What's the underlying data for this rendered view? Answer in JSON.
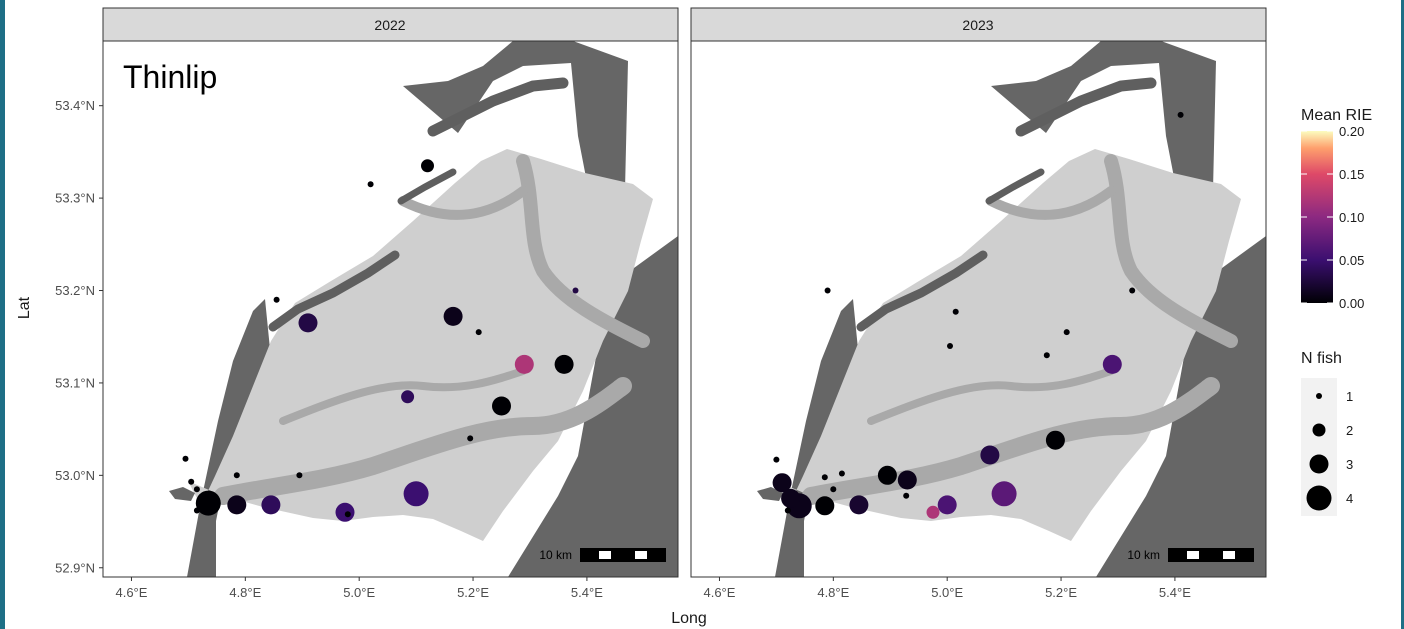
{
  "species_label": "Thinlip",
  "panels": [
    {
      "title": "2022"
    },
    {
      "title": "2023"
    }
  ],
  "axes": {
    "xlabel": "Long",
    "ylabel": "Lat",
    "x_ticks": [
      "4.6°E",
      "4.8°E",
      "5.0°E",
      "5.2°E",
      "5.4°E"
    ],
    "y_ticks": [
      "53.4°N",
      "53.3°N",
      "53.2°N",
      "53.1°N",
      "53.0°N",
      "52.9°N"
    ]
  },
  "scale_bar": {
    "label": "10 km"
  },
  "legend": {
    "color_title": "Mean RIE",
    "color_ticks": [
      "0.20",
      "0.15",
      "0.10",
      "0.05",
      "0.00"
    ],
    "size_title": "N fish",
    "size_items": [
      "1",
      "2",
      "3",
      "4"
    ]
  },
  "colors": {
    "sea": "#cfcfcf",
    "channel": "#a9a9a9",
    "land": "#666666",
    "island": "#5f5f5f",
    "strip": "#d9d9d9",
    "panel_border": "#333333"
  },
  "chart_data": {
    "type": "scatter",
    "xlabel": "Long",
    "ylabel": "Lat",
    "xlim": [
      4.55,
      5.56
    ],
    "ylim": [
      52.89,
      53.47
    ],
    "color_variable": "Mean RIE",
    "color_range": [
      0.0,
      0.2
    ],
    "size_variable": "N fish",
    "panels": [
      {
        "name": "2022",
        "points": [
          {
            "lon": 5.12,
            "lat": 53.335,
            "n": 2,
            "rie": 0.0
          },
          {
            "lon": 5.02,
            "lat": 53.315,
            "n": 1,
            "rie": 0.0
          },
          {
            "lon": 4.855,
            "lat": 53.19,
            "n": 1,
            "rie": 0.0
          },
          {
            "lon": 4.91,
            "lat": 53.165,
            "n": 3,
            "rie": 0.03
          },
          {
            "lon": 5.165,
            "lat": 53.172,
            "n": 3,
            "rie": 0.01
          },
          {
            "lon": 5.21,
            "lat": 53.155,
            "n": 1,
            "rie": 0.0
          },
          {
            "lon": 5.38,
            "lat": 53.2,
            "n": 1,
            "rie": 0.03
          },
          {
            "lon": 5.29,
            "lat": 53.12,
            "n": 3,
            "rie": 0.12
          },
          {
            "lon": 5.36,
            "lat": 53.12,
            "n": 3,
            "rie": 0.0
          },
          {
            "lon": 5.085,
            "lat": 53.085,
            "n": 2,
            "rie": 0.04
          },
          {
            "lon": 5.25,
            "lat": 53.075,
            "n": 3,
            "rie": 0.0
          },
          {
            "lon": 5.195,
            "lat": 53.04,
            "n": 1,
            "rie": 0.0
          },
          {
            "lon": 4.695,
            "lat": 53.018,
            "n": 1,
            "rie": 0.0
          },
          {
            "lon": 4.785,
            "lat": 53.0,
            "n": 1,
            "rie": 0.0
          },
          {
            "lon": 4.895,
            "lat": 53.0,
            "n": 1,
            "rie": 0.0
          },
          {
            "lon": 4.705,
            "lat": 52.993,
            "n": 1,
            "rie": 0.0
          },
          {
            "lon": 4.715,
            "lat": 52.985,
            "n": 1,
            "rie": 0.0
          },
          {
            "lon": 4.735,
            "lat": 52.97,
            "n": 4,
            "rie": 0.0
          },
          {
            "lon": 4.785,
            "lat": 52.968,
            "n": 3,
            "rie": 0.01
          },
          {
            "lon": 4.845,
            "lat": 52.968,
            "n": 3,
            "rie": 0.04
          },
          {
            "lon": 4.715,
            "lat": 52.962,
            "n": 1,
            "rie": 0.0
          },
          {
            "lon": 4.975,
            "lat": 52.96,
            "n": 3,
            "rie": 0.05
          },
          {
            "lon": 4.98,
            "lat": 52.958,
            "n": 1,
            "rie": 0.0
          },
          {
            "lon": 5.1,
            "lat": 52.98,
            "n": 4,
            "rie": 0.05
          }
        ]
      },
      {
        "name": "2023",
        "points": [
          {
            "lon": 5.41,
            "lat": 53.39,
            "n": 1,
            "rie": 0.0
          },
          {
            "lon": 4.79,
            "lat": 53.2,
            "n": 1,
            "rie": 0.0
          },
          {
            "lon": 5.325,
            "lat": 53.2,
            "n": 1,
            "rie": 0.0
          },
          {
            "lon": 5.015,
            "lat": 53.177,
            "n": 1,
            "rie": 0.0
          },
          {
            "lon": 5.21,
            "lat": 53.155,
            "n": 1,
            "rie": 0.0
          },
          {
            "lon": 5.005,
            "lat": 53.14,
            "n": 1,
            "rie": 0.0
          },
          {
            "lon": 5.175,
            "lat": 53.13,
            "n": 1,
            "rie": 0.0
          },
          {
            "lon": 5.29,
            "lat": 53.12,
            "n": 3,
            "rie": 0.06
          },
          {
            "lon": 5.19,
            "lat": 53.038,
            "n": 3,
            "rie": 0.0
          },
          {
            "lon": 5.075,
            "lat": 53.022,
            "n": 3,
            "rie": 0.03
          },
          {
            "lon": 4.7,
            "lat": 53.017,
            "n": 1,
            "rie": 0.0
          },
          {
            "lon": 4.815,
            "lat": 53.002,
            "n": 1,
            "rie": 0.0
          },
          {
            "lon": 4.785,
            "lat": 52.998,
            "n": 1,
            "rie": 0.0
          },
          {
            "lon": 4.895,
            "lat": 53.0,
            "n": 3,
            "rie": 0.0
          },
          {
            "lon": 4.93,
            "lat": 52.995,
            "n": 3,
            "rie": 0.01
          },
          {
            "lon": 4.71,
            "lat": 52.992,
            "n": 3,
            "rie": 0.01
          },
          {
            "lon": 4.8,
            "lat": 52.985,
            "n": 1,
            "rie": 0.0
          },
          {
            "lon": 4.928,
            "lat": 52.978,
            "n": 1,
            "rie": 0.0
          },
          {
            "lon": 4.725,
            "lat": 52.975,
            "n": 3,
            "rie": 0.01
          },
          {
            "lon": 4.74,
            "lat": 52.967,
            "n": 4,
            "rie": 0.01
          },
          {
            "lon": 4.785,
            "lat": 52.967,
            "n": 3,
            "rie": 0.0
          },
          {
            "lon": 4.845,
            "lat": 52.968,
            "n": 3,
            "rie": 0.02
          },
          {
            "lon": 4.72,
            "lat": 52.962,
            "n": 1,
            "rie": 0.0
          },
          {
            "lon": 5.0,
            "lat": 52.968,
            "n": 3,
            "rie": 0.06
          },
          {
            "lon": 4.975,
            "lat": 52.96,
            "n": 2,
            "rie": 0.12
          },
          {
            "lon": 5.1,
            "lat": 52.98,
            "n": 4,
            "rie": 0.07
          }
        ]
      }
    ]
  }
}
